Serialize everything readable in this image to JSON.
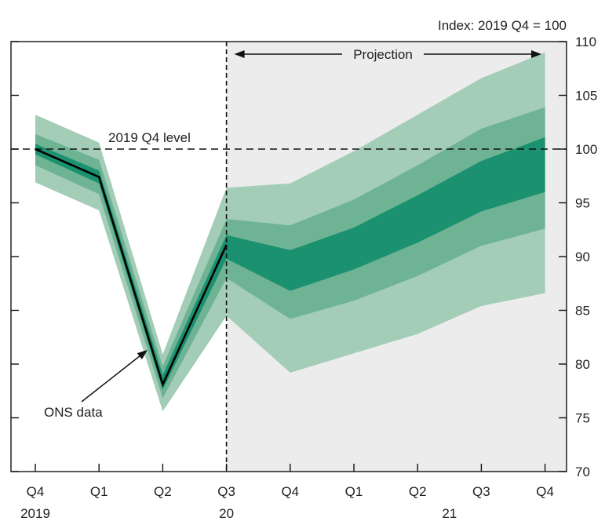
{
  "chart_data": {
    "type": "area",
    "title": "",
    "units_label": "Index: 2019 Q4 = 100",
    "categories": [
      "Q4",
      "Q1",
      "Q2",
      "Q3",
      "Q4",
      "Q1",
      "Q2",
      "Q3",
      "Q4"
    ],
    "year_labels": [
      {
        "index": 0,
        "label": "2019"
      },
      {
        "index": 3,
        "label": "20"
      },
      {
        "index": 6.5,
        "label": "21"
      }
    ],
    "y_ticks": [
      70,
      75,
      80,
      85,
      90,
      95,
      100,
      105,
      110
    ],
    "ylim": [
      70,
      110
    ],
    "reference_line": {
      "value": 100,
      "label": "2019 Q4 level"
    },
    "projection": {
      "start_index": 3,
      "end_index": 8,
      "label": "Projection"
    },
    "ons_data": {
      "label": "ONS data",
      "x": [
        0,
        1,
        2,
        3
      ],
      "values": [
        100,
        97.4,
        78.1,
        91.1
      ]
    },
    "fan_bands": [
      {
        "name": "outer",
        "color": "#a3cdb7",
        "upper": [
          103.2,
          100.6,
          80.9,
          96.4,
          96.8,
          99.8,
          103.2,
          106.6,
          109.0
        ],
        "lower": [
          96.9,
          94.3,
          75.6,
          84.5,
          79.2,
          81.0,
          82.8,
          85.4,
          86.6
        ]
      },
      {
        "name": "middle",
        "color": "#6fb395",
        "upper": [
          101.4,
          99.0,
          79.8,
          93.5,
          92.9,
          95.3,
          98.5,
          101.9,
          103.9
        ],
        "lower": [
          98.5,
          95.8,
          76.8,
          88.0,
          84.2,
          85.9,
          88.2,
          91.0,
          92.6
        ]
      },
      {
        "name": "inner",
        "color": "#1b9170",
        "upper": [
          100.5,
          98.0,
          79.0,
          92.0,
          90.6,
          92.7,
          95.7,
          98.9,
          101.1
        ],
        "lower": [
          99.5,
          96.8,
          77.6,
          89.8,
          86.8,
          88.8,
          91.3,
          94.2,
          96.0
        ]
      }
    ],
    "grid": false,
    "colors": {
      "projection_bg": "#ececec",
      "line": "#000000"
    }
  }
}
